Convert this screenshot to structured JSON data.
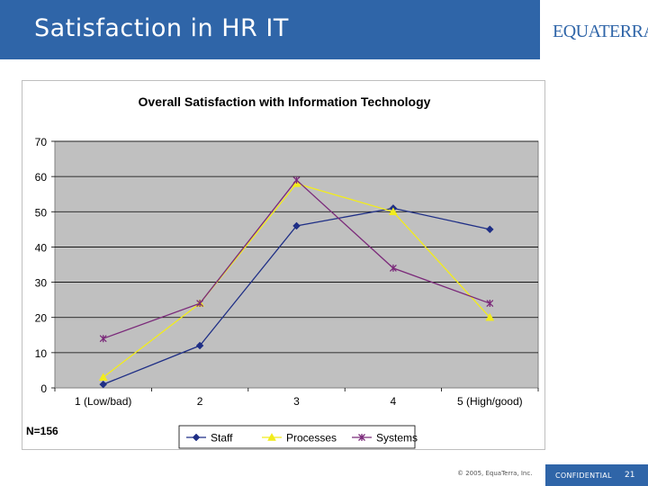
{
  "slide": {
    "title": "Satisfaction in HR IT",
    "logo": "EQUATERRA",
    "copyright": "© 2005, EquaTerra, Inc.",
    "confidential": "CONFIDENTIAL",
    "page_number": "21",
    "colors": {
      "brand": "#2f65a8",
      "plot_bg": "#c0c0c0"
    }
  },
  "chart_data": {
    "type": "line",
    "title": "Overall Satisfaction with Information Technology",
    "categories": [
      "1 (Low/bad)",
      "2",
      "3",
      "4",
      "5 (High/good)"
    ],
    "xlabel": "",
    "ylabel": "",
    "ylim": [
      0,
      70
    ],
    "yticks": [
      0,
      10,
      20,
      30,
      40,
      50,
      60,
      70
    ],
    "grid": true,
    "legend_position": "bottom",
    "note": "N=156",
    "series": [
      {
        "name": "Staff",
        "color": "#1f2f86",
        "marker": "diamond",
        "values": [
          1,
          12,
          46,
          51,
          45
        ]
      },
      {
        "name": "Processes",
        "color": "#f2ec1b",
        "marker": "triangle",
        "values": [
          3,
          24,
          58,
          50,
          20
        ]
      },
      {
        "name": "Systems",
        "color": "#7b2a7a",
        "marker": "star",
        "values": [
          14,
          24,
          59,
          34,
          24
        ]
      }
    ]
  }
}
